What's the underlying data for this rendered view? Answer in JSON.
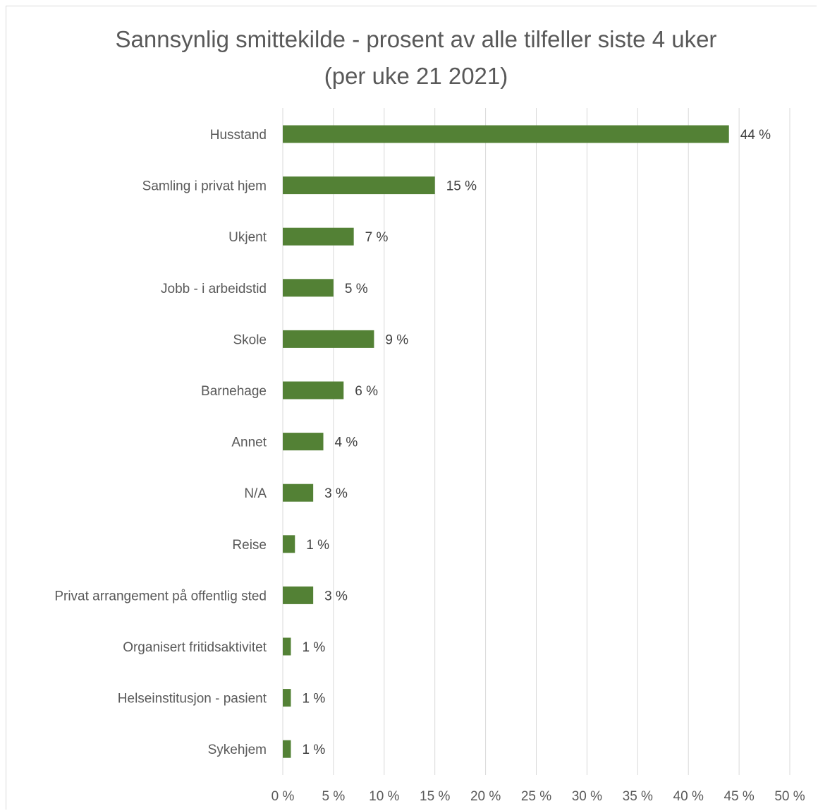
{
  "chart_data": {
    "type": "bar",
    "orientation": "horizontal",
    "title": "Sannsynlig smittekilde - prosent av alle tilfeller siste 4 uker",
    "subtitle": "(per uke 21 2021)",
    "categories": [
      "Husstand",
      "Samling i privat hjem",
      "Ukjent",
      "Jobb - i arbeidstid",
      "Skole",
      "Barnehage",
      "Annet",
      "N/A",
      "Reise",
      "Privat arrangement på offentlig sted",
      "Organisert fritidsaktivitet",
      "Helseinstitusjon - pasient",
      "Sykehjem"
    ],
    "values": [
      44,
      15,
      7,
      5,
      9,
      6,
      4,
      3,
      1.2,
      3,
      0.8,
      0.8,
      0.8
    ],
    "data_labels": [
      "44 %",
      "15 %",
      "7 %",
      "5 %",
      "9 %",
      "6 %",
      "4 %",
      "3 %",
      "1 %",
      "3 %",
      "1 %",
      "1 %",
      "1 %"
    ],
    "xlim": [
      0,
      50
    ],
    "x_ticks": [
      "0 %",
      "5 %",
      "10 %",
      "15 %",
      "20 %",
      "25 %",
      "30 %",
      "35 %",
      "40 %",
      "45 %",
      "50 %"
    ],
    "gridlines": "vertical",
    "legend": "none",
    "bar_color": "#538135",
    "grid_color": "#d9d9d9",
    "text_color": "#595959"
  }
}
